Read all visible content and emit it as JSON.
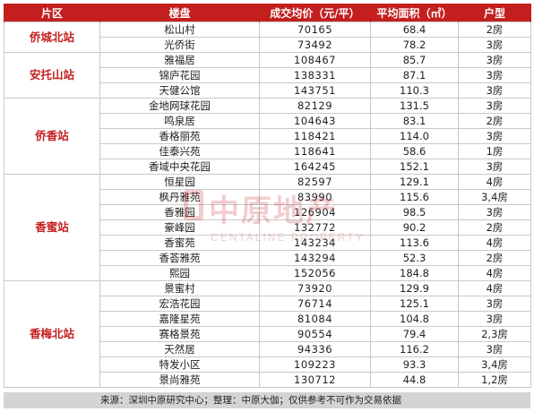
{
  "headers": [
    "片区",
    "楼盘",
    "成交均价（元/平）",
    "平均面积（㎡）",
    "户型"
  ],
  "groups": [
    {
      "district": "侨城北站",
      "rows": [
        {
          "name": "松山村",
          "price": "70165",
          "area": "68.4",
          "type": "2房"
        },
        {
          "name": "光侨街",
          "price": "73492",
          "area": "78.2",
          "type": "3房"
        }
      ]
    },
    {
      "district": "安托山站",
      "rows": [
        {
          "name": "雅福居",
          "price": "108467",
          "area": "85.7",
          "type": "3房"
        },
        {
          "name": "锦庐花园",
          "price": "138331",
          "area": "87.1",
          "type": "3房"
        },
        {
          "name": "天健公馆",
          "price": "143751",
          "area": "110.3",
          "type": "3房"
        }
      ]
    },
    {
      "district": "侨香站",
      "rows": [
        {
          "name": "金地网球花园",
          "price": "82129",
          "area": "131.5",
          "type": "3房"
        },
        {
          "name": "鸣泉居",
          "price": "104643",
          "area": "83.1",
          "type": "2房"
        },
        {
          "name": "香格丽苑",
          "price": "118421",
          "area": "114.0",
          "type": "3房"
        },
        {
          "name": "佳泰兴苑",
          "price": "118641",
          "area": "58.6",
          "type": "1房"
        },
        {
          "name": "香域中央花园",
          "price": "164245",
          "area": "152.1",
          "type": "3房"
        }
      ]
    },
    {
      "district": "香蜜站",
      "rows": [
        {
          "name": "恒星园",
          "price": "82597",
          "area": "129.1",
          "type": "4房"
        },
        {
          "name": "枫丹雅苑",
          "price": "83990",
          "area": "115.6",
          "type": "3,4房"
        },
        {
          "name": "香雅园",
          "price": "126904",
          "area": "98.5",
          "type": "3房"
        },
        {
          "name": "豪峰园",
          "price": "132772",
          "area": "90.2",
          "type": "2房"
        },
        {
          "name": "香蜜苑",
          "price": "143234",
          "area": "113.6",
          "type": "4房"
        },
        {
          "name": "香荟雅苑",
          "price": "143294",
          "area": "52.3",
          "type": "2房"
        },
        {
          "name": "熙园",
          "price": "152056",
          "area": "184.8",
          "type": "4房"
        }
      ]
    },
    {
      "district": "香梅北站",
      "rows": [
        {
          "name": "景蜜村",
          "price": "73920",
          "area": "129.9",
          "type": "4房"
        },
        {
          "name": "宏浩花园",
          "price": "76714",
          "area": "125.1",
          "type": "3房"
        },
        {
          "name": "嘉隆星苑",
          "price": "81084",
          "area": "104.8",
          "type": "3房"
        },
        {
          "name": "赛格景苑",
          "price": "90554",
          "area": "79.4",
          "type": "2,3房"
        },
        {
          "name": "天然居",
          "price": "94336",
          "area": "116.2",
          "type": "3房"
        },
        {
          "name": "特发小区",
          "price": "109223",
          "area": "93.3",
          "type": "3,4房"
        },
        {
          "name": "景尚雅苑",
          "price": "130712",
          "area": "44.8",
          "type": "1,2房"
        }
      ]
    }
  ],
  "footer": "来源：深圳中原研究中心；整理：中原大伽；仅供参考不可作为交易依据",
  "watermark": {
    "cn": "中原地产",
    "en": "CENTALINE PROPERTY"
  },
  "colors": {
    "header_bg": "#c41f1f",
    "district_text": "#c41f1f",
    "footer_bg": "#d4d4d4"
  }
}
